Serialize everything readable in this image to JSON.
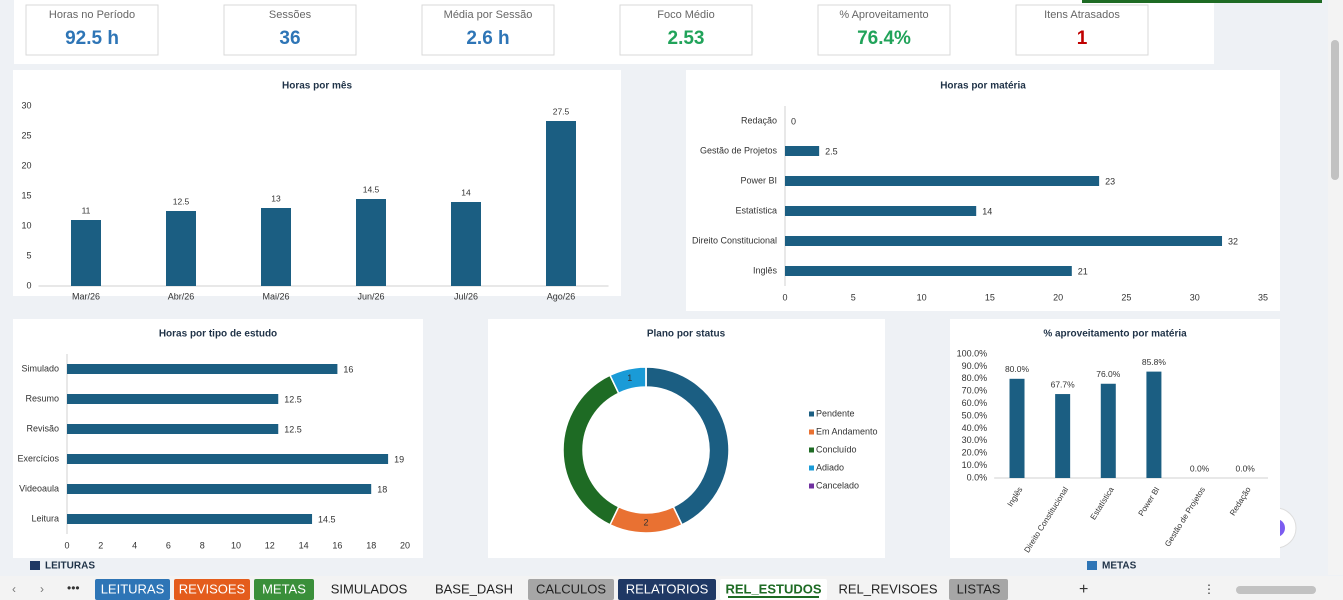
{
  "kpis": [
    {
      "label": "Horas no Período",
      "value": "92.5 h",
      "color": "#2e75b6"
    },
    {
      "label": "Sessões",
      "value": "36",
      "color": "#2e75b6"
    },
    {
      "label": "Média por Sessão",
      "value": "2.6 h",
      "color": "#2e75b6"
    },
    {
      "label": "Foco Médio",
      "value": "2.53",
      "color": "#21a35a"
    },
    {
      "label": "% Aproveitamento",
      "value": "76.4%",
      "color": "#21a35a"
    },
    {
      "label": "Itens Atrasados",
      "value": "1",
      "color": "#c00000"
    }
  ],
  "chart_data": [
    {
      "type": "bar",
      "title": "Horas por mês",
      "categories": [
        "Mar/26",
        "Abr/26",
        "Mai/26",
        "Jun/26",
        "Jul/26",
        "Ago/26"
      ],
      "values": [
        11,
        12.5,
        13,
        14.5,
        14,
        27.5
      ],
      "color": "#1b5e82",
      "ylim": [
        0,
        30
      ],
      "yticks": [
        0,
        5,
        10,
        15,
        20,
        25,
        30
      ]
    },
    {
      "type": "hbar",
      "title": "Horas por matéria",
      "categories": [
        "Redação",
        "Gestão de Projetos",
        "Power BI",
        "Estatística",
        "Direito Constitucional",
        "Inglês"
      ],
      "values": [
        0,
        2.5,
        23,
        14,
        32,
        21
      ],
      "color": "#1b5e82",
      "xlim": [
        0,
        35
      ],
      "xticks": [
        0,
        5,
        10,
        15,
        20,
        25,
        30,
        35
      ]
    },
    {
      "type": "hbar",
      "title": "Horas por tipo de estudo",
      "categories": [
        "Simulado",
        "Resumo",
        "Revisão",
        "Exercícios",
        "Videoaula",
        "Leitura"
      ],
      "values": [
        16,
        12.5,
        12.5,
        19,
        18,
        14.5
      ],
      "color": "#1b5e82",
      "xlim": [
        0,
        20
      ],
      "xticks": [
        0,
        2,
        4,
        6,
        8,
        10,
        12,
        14,
        16,
        18,
        20
      ]
    },
    {
      "type": "donut",
      "title": "Plano por status",
      "categories": [
        "Pendente",
        "Em Andamento",
        "Concluído",
        "Adiado",
        "Cancelado"
      ],
      "values": [
        6,
        2,
        5,
        1,
        0
      ],
      "value_labels": [
        null,
        "2",
        null,
        "1",
        null
      ],
      "colors": [
        "#1b5e82",
        "#e97132",
        "#1e6b24",
        "#1a9bd7",
        "#7030a0"
      ]
    },
    {
      "type": "bar",
      "title": "% aproveitamento por matéria",
      "categories": [
        "Inglês",
        "Direito Constitucional",
        "Estatística",
        "Power BI",
        "Gestão de Projetos",
        "Redação"
      ],
      "values": [
        80,
        67.7,
        76,
        85.8,
        0,
        0
      ],
      "value_labels": [
        "80.0%",
        "67.7%",
        "76.0%",
        "85.8%",
        "0.0%",
        "0.0%"
      ],
      "color": "#1b5e82",
      "ylim": [
        0,
        100
      ],
      "yticks": [
        {
          "value": 0,
          "label": "0.0%"
        },
        {
          "value": 10,
          "label": "10.0%"
        },
        {
          "value": 20,
          "label": "20.0%"
        },
        {
          "value": 30,
          "label": "30.0%"
        },
        {
          "value": 40,
          "label": "40.0%"
        },
        {
          "value": 50,
          "label": "50.0%"
        },
        {
          "value": 60,
          "label": "60.0%"
        },
        {
          "value": 70,
          "label": "70.0%"
        },
        {
          "value": 80,
          "label": "80.0%"
        },
        {
          "value": 90,
          "label": "90.0%"
        },
        {
          "value": 100,
          "label": "100.0%"
        }
      ]
    }
  ],
  "sections": [
    "LEITURAS",
    "METAS"
  ],
  "tabs": [
    {
      "label": "LEITURAS",
      "color": "#2e75b6",
      "text_color": "#ffffff"
    },
    {
      "label": "REVISOES",
      "color": "#e45c1c",
      "text_color": "#ffffff"
    },
    {
      "label": "METAS",
      "color": "#3a8f3a",
      "text_color": "#ffffff"
    },
    {
      "label": "SIMULADOS",
      "color": "#f3f3f3",
      "text_color": "#222222"
    },
    {
      "label": "BASE_DASH",
      "color": "#f3f3f3",
      "text_color": "#222222"
    },
    {
      "label": "CALCULOS",
      "color": "#a6a6a6",
      "text_color": "#222222"
    },
    {
      "label": "RELATORIOS",
      "color": "#1f3864",
      "text_color": "#ffffff"
    },
    {
      "label": "REL_ESTUDOS",
      "color": "#ffffff",
      "text_color": "#1e6b24"
    },
    {
      "label": "REL_REVISOES",
      "color": "#f3f3f3",
      "text_color": "#222222"
    },
    {
      "label": "LISTAS",
      "color": "#a6a6a6",
      "text_color": "#222222"
    }
  ]
}
